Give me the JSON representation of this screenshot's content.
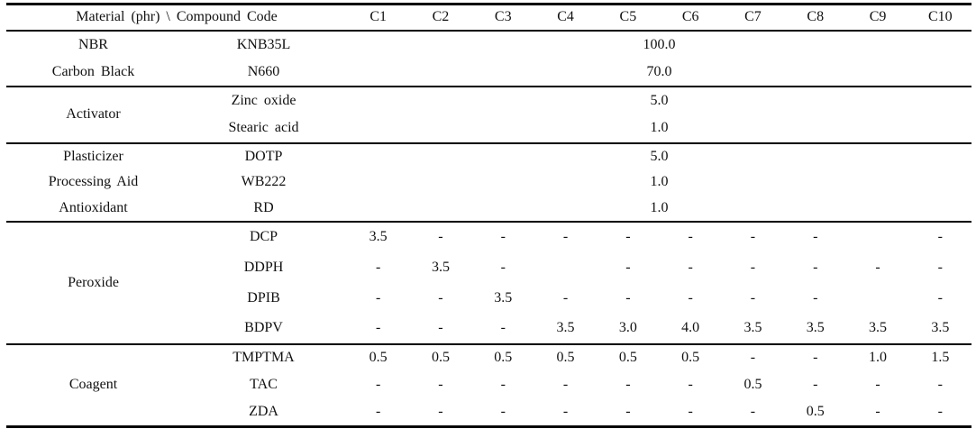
{
  "table": {
    "header": {
      "label_col": "Material (phr) \\ Compound Code",
      "compound_codes": [
        "C1",
        "C2",
        "C3",
        "C4",
        "C5",
        "C6",
        "C7",
        "C8",
        "C9",
        "C10"
      ]
    },
    "sections": [
      {
        "rows": [
          {
            "material": "NBR",
            "code": "KNB35L",
            "span_value": "100.0"
          },
          {
            "material": "Carbon Black",
            "code": "N660",
            "span_value": "70.0"
          }
        ]
      },
      {
        "material": "Activator",
        "rows": [
          {
            "code": "Zinc oxide",
            "span_value": "5.0"
          },
          {
            "code": "Stearic acid",
            "span_value": "1.0"
          }
        ]
      },
      {
        "rows": [
          {
            "material": "Plasticizer",
            "code": "DOTP",
            "span_value": "5.0"
          },
          {
            "material": "Processing Aid",
            "code": "WB222",
            "span_value": "1.0"
          },
          {
            "material": "Antioxidant",
            "code": "RD",
            "span_value": "1.0"
          }
        ]
      },
      {
        "material": "Peroxide",
        "rows": [
          {
            "code": "DCP",
            "values": [
              "3.5",
              "-",
              "-",
              "-",
              "-",
              "-",
              "-",
              "-",
              "",
              "-"
            ]
          },
          {
            "code": "DDPH",
            "values": [
              "-",
              "3.5",
              "-",
              "",
              "-",
              "-",
              "-",
              "-",
              "-",
              "-"
            ]
          },
          {
            "code": "DPIB",
            "values": [
              "-",
              "-",
              "3.5",
              "-",
              "-",
              "-",
              "-",
              "-",
              "",
              "-"
            ]
          },
          {
            "code": "BDPV",
            "values": [
              "-",
              "-",
              "-",
              "3.5",
              "3.0",
              "4.0",
              "3.5",
              "3.5",
              "3.5",
              "3.5"
            ]
          }
        ]
      },
      {
        "material": "Coagent",
        "rows": [
          {
            "code": "TMPTMA",
            "values": [
              "0.5",
              "0.5",
              "0.5",
              "0.5",
              "0.5",
              "0.5",
              "-",
              "-",
              "1.0",
              "1.5"
            ]
          },
          {
            "code": "TAC",
            "values": [
              "-",
              "-",
              "-",
              "-",
              "-",
              "-",
              "0.5",
              "-",
              "-",
              "-"
            ]
          },
          {
            "code": "ZDA",
            "values": [
              "-",
              "-",
              "-",
              "-",
              "-",
              "-",
              "-",
              "0.5",
              "-",
              "-"
            ]
          }
        ]
      }
    ],
    "colors": {
      "text": "#111111",
      "rule": "#000000",
      "background": "#ffffff"
    }
  }
}
